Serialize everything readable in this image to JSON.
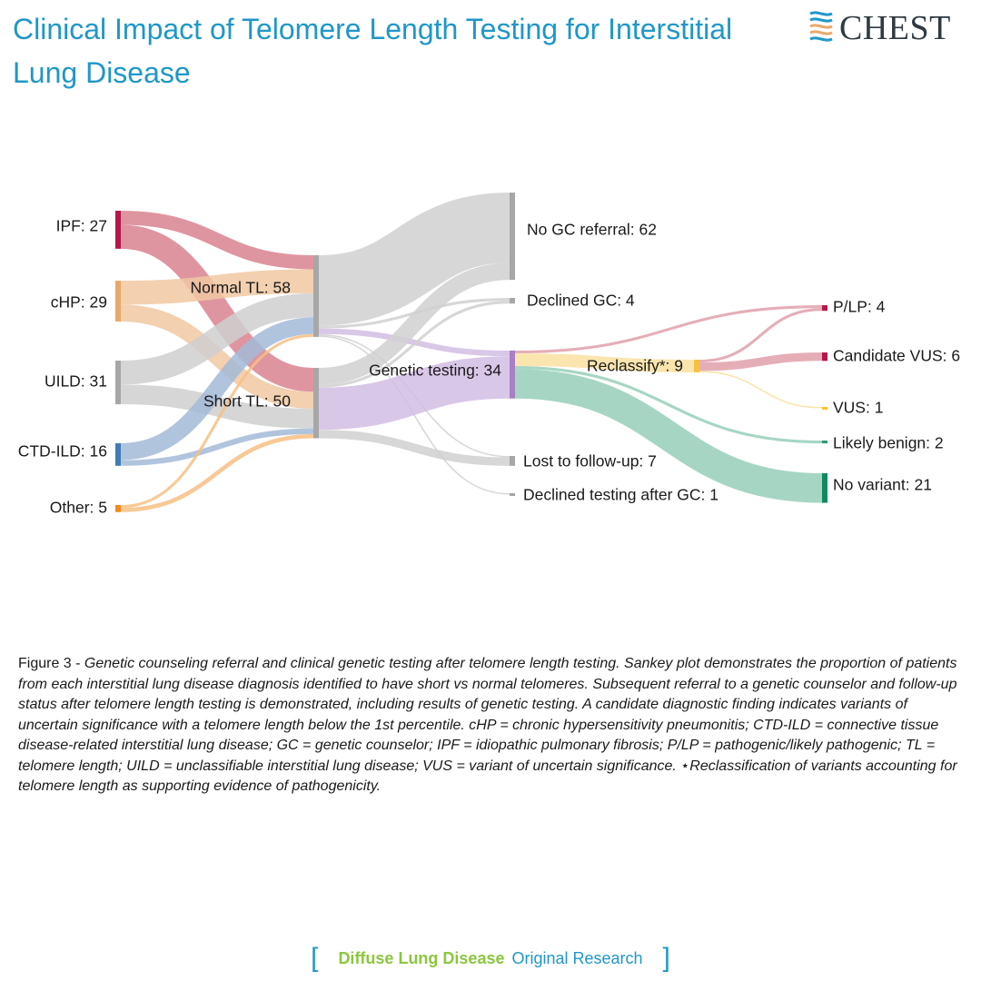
{
  "header": {
    "title": "Clinical Impact of Telomere Length Testing for Interstitial Lung Disease",
    "logo_text": "CHEST"
  },
  "chart_data": {
    "type": "sankey",
    "nodes": [
      {
        "id": "ipf",
        "label": "IPF: 27",
        "name": "IPF",
        "value": 27,
        "color": "#b5174b"
      },
      {
        "id": "chp",
        "label": "cHP: 29",
        "name": "cHP",
        "value": 29,
        "color": "#e9a86a"
      },
      {
        "id": "uild",
        "label": "UILD: 31",
        "name": "UILD",
        "value": 31,
        "color": "#a7a7a7"
      },
      {
        "id": "ctd",
        "label": "CTD-ILD: 16",
        "name": "CTD-ILD",
        "value": 16,
        "color": "#3f7cb5"
      },
      {
        "id": "other",
        "label": "Other: 5",
        "name": "Other",
        "value": 5,
        "color": "#f08a1c"
      },
      {
        "id": "normal",
        "label": "Normal TL: 58",
        "name": "Normal TL",
        "value": 58,
        "color": "#a7a7a7"
      },
      {
        "id": "short",
        "label": "Short TL: 50",
        "name": "Short TL",
        "value": 50,
        "color": "#a7a7a7"
      },
      {
        "id": "nogc",
        "label": "No GC referral: 62",
        "name": "No GC referral",
        "value": 62,
        "color": "#a7a7a7"
      },
      {
        "id": "declgc",
        "label": "Declined GC: 4",
        "name": "Declined GC",
        "value": 4,
        "color": "#a7a7a7"
      },
      {
        "id": "gt",
        "label": "Genetic testing: 34",
        "name": "Genetic testing",
        "value": 34,
        "color": "#a97fc6"
      },
      {
        "id": "lost",
        "label": "Lost to follow-up: 7",
        "name": "Lost to follow-up",
        "value": 7,
        "color": "#a7a7a7"
      },
      {
        "id": "declt",
        "label": "Declined testing after GC: 1",
        "name": "Declined testing after GC",
        "value": 1,
        "color": "#a7a7a7"
      },
      {
        "id": "recl",
        "label": "Reclassify*: 9",
        "name": "Reclassify*",
        "value": 9,
        "color": "#f6c23e"
      },
      {
        "id": "plp",
        "label": "P/LP: 4",
        "name": "P/LP",
        "value": 4,
        "color": "#b5174b"
      },
      {
        "id": "cvus",
        "label": "Candidate VUS: 6",
        "name": "Candidate VUS",
        "value": 6,
        "color": "#b5174b"
      },
      {
        "id": "vus",
        "label": "VUS: 1",
        "name": "VUS",
        "value": 1,
        "color": "#f6c23e"
      },
      {
        "id": "lb",
        "label": "Likely benign: 2",
        "name": "Likely benign",
        "value": 2,
        "color": "#2e9a74"
      },
      {
        "id": "nov",
        "label": "No variant: 21",
        "name": "No variant",
        "value": 21,
        "color": "#0f8a5f"
      }
    ],
    "links": [
      {
        "source": "ipf",
        "target": "normal",
        "value": 10,
        "color": "#d9828f"
      },
      {
        "source": "ipf",
        "target": "short",
        "value": 17,
        "color": "#d9828f"
      },
      {
        "source": "chp",
        "target": "normal",
        "value": 17,
        "color": "#f0c8a2"
      },
      {
        "source": "chp",
        "target": "short",
        "value": 12,
        "color": "#f0c8a2"
      },
      {
        "source": "uild",
        "target": "normal",
        "value": 17,
        "color": "#cfcfcf"
      },
      {
        "source": "uild",
        "target": "short",
        "value": 14,
        "color": "#cfcfcf"
      },
      {
        "source": "ctd",
        "target": "normal",
        "value": 12,
        "color": "#a3bad8"
      },
      {
        "source": "ctd",
        "target": "short",
        "value": 4,
        "color": "#a3bad8"
      },
      {
        "source": "other",
        "target": "normal",
        "value": 2,
        "color": "#f7c084"
      },
      {
        "source": "other",
        "target": "short",
        "value": 3,
        "color": "#f7c084"
      },
      {
        "source": "normal",
        "target": "nogc",
        "value": 50,
        "color": "#d0d0d1"
      },
      {
        "source": "normal",
        "target": "declgc",
        "value": 2,
        "color": "#d0d0d1"
      },
      {
        "source": "normal",
        "target": "gt",
        "value": 4,
        "color": "#d2bde4"
      },
      {
        "source": "normal",
        "target": "lost",
        "value": 1,
        "color": "#d0d0d1"
      },
      {
        "source": "normal",
        "target": "declt",
        "value": 1,
        "color": "#d0d0d1"
      },
      {
        "source": "short",
        "target": "nogc",
        "value": 12,
        "color": "#d0d0d1"
      },
      {
        "source": "short",
        "target": "declgc",
        "value": 2,
        "color": "#d0d0d1"
      },
      {
        "source": "short",
        "target": "gt",
        "value": 30,
        "color": "#d2bde4"
      },
      {
        "source": "short",
        "target": "lost",
        "value": 6,
        "color": "#d0d0d1"
      },
      {
        "source": "gt",
        "target": "plp",
        "value": 2,
        "color": "#e1a0aa"
      },
      {
        "source": "gt",
        "target": "recl",
        "value": 9,
        "color": "#fae1a0"
      },
      {
        "source": "gt",
        "target": "lb",
        "value": 2,
        "color": "#96cfb8"
      },
      {
        "source": "gt",
        "target": "nov",
        "value": 21,
        "color": "#96cfb8"
      },
      {
        "source": "recl",
        "target": "plp",
        "value": 2,
        "color": "#e1a0aa"
      },
      {
        "source": "recl",
        "target": "cvus",
        "value": 6,
        "color": "#e1a0aa"
      },
      {
        "source": "recl",
        "target": "vus",
        "value": 1,
        "color": "#fae1a0"
      }
    ]
  },
  "caption": {
    "label": "Figure 3 - ",
    "text": "Genetic counseling referral and clinical genetic testing after telomere length testing. Sankey plot demonstrates the proportion of patients from each interstitial lung disease diagnosis identified to have short vs normal telomeres. Subsequent referral to a genetic counselor and follow-up status after telomere length testing is demonstrated, including results of genetic testing. A candidate diagnostic finding indicates variants of uncertain significance with a telomere length below the 1st percentile. cHP = chronic hypersensitivity pneumonitis; CTD-ILD = connective tissue disease-related interstitial lung disease; GC = genetic counselor; IPF = idiopathic pulmonary fibrosis; P/LP = pathogenic/likely pathogenic; TL = telomere length; UILD = unclassifiable interstitial lung disease; VUS = variant of uncertain significance.",
    "footnote": "⋆Reclassification of variants accounting for telomere length as supporting evidence of pathogenicity."
  },
  "footer": {
    "category": "Diffuse Lung Disease",
    "type": "Original Research",
    "bracket_open": "[",
    "bracket_close": "]"
  }
}
